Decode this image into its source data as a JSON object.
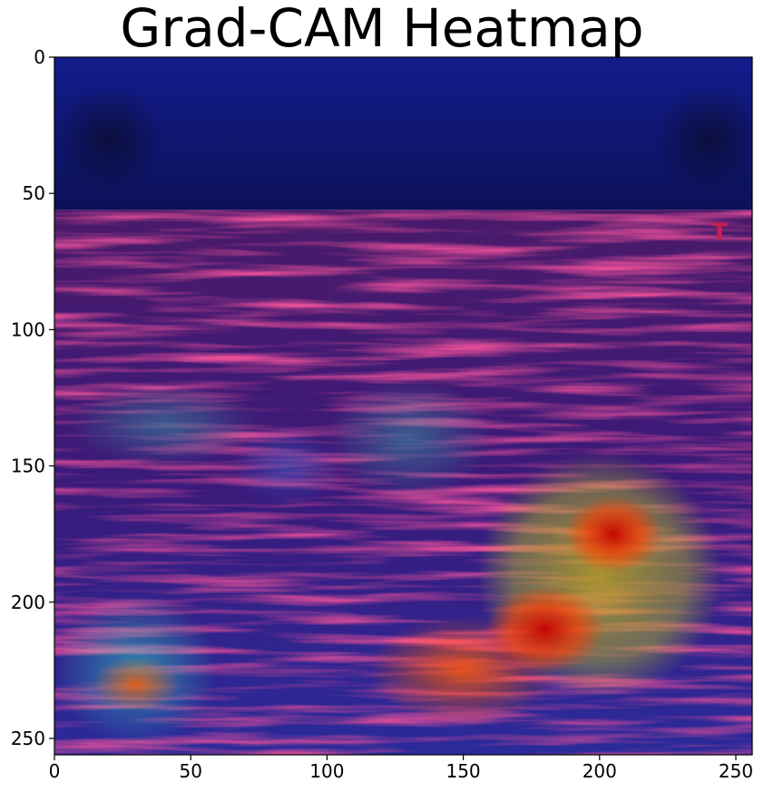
{
  "chart_data": {
    "type": "heatmap",
    "title": "Grad-CAM Heatmap",
    "xlim": [
      0,
      256
    ],
    "ylim": [
      256,
      0
    ],
    "xticks": [
      0,
      50,
      100,
      150,
      200,
      250
    ],
    "yticks": [
      0,
      50,
      100,
      150,
      200,
      250
    ],
    "xtick_labels": [
      "0",
      "50",
      "100",
      "150",
      "200",
      "250"
    ],
    "ytick_labels": [
      "0",
      "50",
      "100",
      "150",
      "200",
      "250"
    ],
    "grid": false,
    "colormap": "jet",
    "overlay": "ultrasound image",
    "header_band_rows": [
      0,
      56
    ],
    "header_band_color": "#0f1a6e",
    "activation_regions": [
      {
        "x": 205,
        "y": 175,
        "rx": 18,
        "ry": 14,
        "level": 1.0
      },
      {
        "x": 180,
        "y": 210,
        "rx": 22,
        "ry": 16,
        "level": 0.95
      },
      {
        "x": 200,
        "y": 190,
        "rx": 45,
        "ry": 45,
        "level": 0.75
      },
      {
        "x": 150,
        "y": 225,
        "rx": 35,
        "ry": 20,
        "level": 0.6
      },
      {
        "x": 30,
        "y": 230,
        "rx": 16,
        "ry": 10,
        "level": 0.6
      },
      {
        "x": 30,
        "y": 225,
        "rx": 30,
        "ry": 28,
        "level": 0.4
      },
      {
        "x": 130,
        "y": 140,
        "rx": 30,
        "ry": 22,
        "level": 0.35
      },
      {
        "x": 40,
        "y": 135,
        "rx": 35,
        "ry": 15,
        "level": 0.3
      },
      {
        "x": 85,
        "y": 150,
        "rx": 20,
        "ry": 15,
        "level": 0.25
      }
    ],
    "marker": {
      "text": "T",
      "color": "#c81e50"
    }
  }
}
